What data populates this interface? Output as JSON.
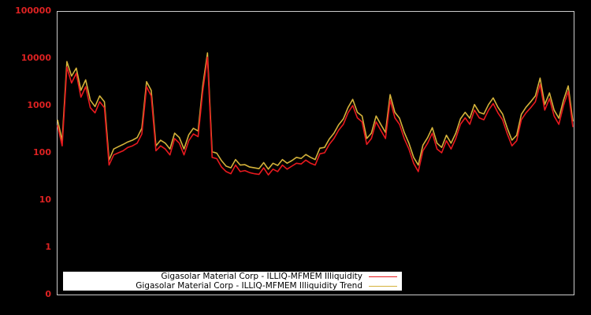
{
  "chart_data": {
    "type": "line",
    "title": "",
    "xlabel": "",
    "ylabel": "",
    "yscale": "log",
    "ylim": [
      0.1,
      100000
    ],
    "y_tick_labels": [
      "100000",
      "10000",
      "1000",
      "100",
      "10",
      "1",
      "0"
    ],
    "y_tick_values": [
      100000,
      10000,
      1000,
      100,
      10,
      1,
      0.1
    ],
    "grid": false,
    "legend_position": "lower-left",
    "x_index_range": [
      0,
      100
    ],
    "series": [
      {
        "name": "Gigasolar Material Corp - ILLIQ-MFMEM Illiquidity",
        "color": "#e8191e",
        "values": [
          380,
          140,
          6500,
          3000,
          4800,
          1500,
          2500,
          900,
          700,
          1200,
          900,
          55,
          90,
          100,
          110,
          130,
          140,
          160,
          250,
          2500,
          1600,
          110,
          140,
          120,
          90,
          200,
          160,
          90,
          180,
          250,
          220,
          2000,
          10500,
          80,
          75,
          50,
          40,
          36,
          55,
          40,
          42,
          38,
          36,
          35,
          48,
          34,
          45,
          40,
          55,
          45,
          52,
          60,
          58,
          70,
          60,
          55,
          95,
          100,
          150,
          200,
          300,
          400,
          700,
          1000,
          550,
          450,
          150,
          200,
          450,
          300,
          200,
          1300,
          550,
          400,
          200,
          120,
          60,
          40,
          110,
          160,
          260,
          120,
          100,
          180,
          120,
          200,
          400,
          550,
          400,
          800,
          550,
          500,
          800,
          1100,
          700,
          500,
          250,
          140,
          180,
          500,
          700,
          900,
          1200,
          2800,
          800,
          1400,
          600,
          400,
          1000,
          2000,
          350
        ]
      },
      {
        "name": "Gigasolar Material Corp - ILLIQ-MFMEM Illiquidity Trend",
        "color": "#d4b23a",
        "values": [
          500,
          180,
          8500,
          4200,
          6200,
          2100,
          3500,
          1300,
          950,
          1600,
          1200,
          70,
          120,
          135,
          150,
          170,
          185,
          210,
          330,
          3200,
          2100,
          140,
          185,
          160,
          120,
          260,
          210,
          120,
          240,
          330,
          290,
          2600,
          13000,
          105,
          98,
          68,
          52,
          48,
          72,
          55,
          56,
          50,
          48,
          46,
          62,
          45,
          60,
          54,
          72,
          60,
          68,
          80,
          76,
          92,
          80,
          72,
          125,
          130,
          195,
          260,
          390,
          520,
          900,
          1350,
          720,
          600,
          200,
          260,
          600,
          400,
          270,
          1700,
          720,
          540,
          270,
          160,
          80,
          55,
          145,
          210,
          340,
          160,
          130,
          235,
          160,
          260,
          520,
          720,
          540,
          1050,
          720,
          660,
          1050,
          1450,
          920,
          660,
          330,
          185,
          235,
          650,
          920,
          1200,
          1600,
          3800,
          1050,
          1850,
          800,
          540,
          1300,
          2600,
          460
        ]
      }
    ]
  },
  "legend": {
    "items": [
      {
        "label": "Gigasolar Material Corp - ILLIQ-MFMEM Illiquidity",
        "color": "#e8191e"
      },
      {
        "label": "Gigasolar Material Corp - ILLIQ-MFMEM Illiquidity Trend",
        "color": "#d4b23a"
      }
    ]
  },
  "colors": {
    "background": "#000000",
    "axis_frame": "#cccccc",
    "tick_label": "#dd2222"
  }
}
